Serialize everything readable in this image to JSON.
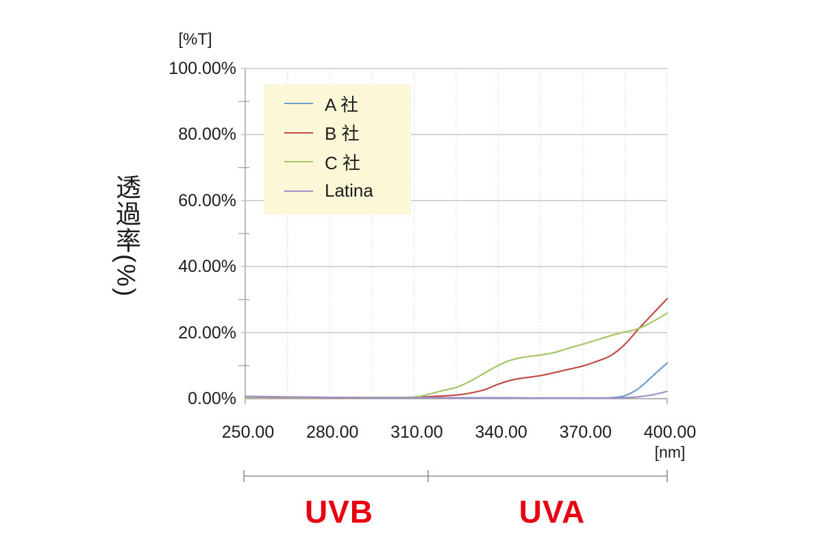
{
  "chart_data": {
    "type": "line",
    "title": "",
    "y_unit_label": "[%T]",
    "x_unit_label": "[nm]",
    "ylabel": "透過率(%)",
    "xlim": [
      250,
      400
    ],
    "ylim": [
      0,
      100
    ],
    "x_ticks": {
      "labels": [
        "250.00",
        "280.00",
        "310.00",
        "340.00",
        "370.00",
        "400.00"
      ],
      "values": [
        250,
        280,
        310,
        340,
        370,
        400
      ]
    },
    "y_ticks": {
      "labels": [
        "100.00%",
        "80.00%",
        "60.00%",
        "40.00%",
        "20.00%",
        "0.00%"
      ],
      "values": [
        100,
        80,
        60,
        40,
        20,
        0
      ]
    },
    "x_minor_grid_step_nm": 15,
    "y_minor_tick_step_pct": 10,
    "grid": true,
    "legend_position": "inside-top-left",
    "colors": {
      "legend_bg": "#fcf7d6",
      "major_grid": "#c9c9c9",
      "minor_grid": "#d2d2d2",
      "axis": "#a8a8a8",
      "bracket": "#8f8f8f",
      "uv_text": "#e60012",
      "text": "#1c1c1c"
    },
    "x": [
      250,
      260,
      270,
      280,
      290,
      300,
      310,
      315,
      320,
      325,
      330,
      335,
      340,
      345,
      350,
      355,
      360,
      365,
      370,
      375,
      380,
      385,
      390,
      395,
      400
    ],
    "series": [
      {
        "name": "A 社",
        "color": "#6d9bcb",
        "values": [
          0.6,
          0.5,
          0.5,
          0.4,
          0.4,
          0.4,
          0.3,
          0.3,
          0.3,
          0.3,
          0.3,
          0.3,
          0.3,
          0.3,
          0.2,
          0.2,
          0.2,
          0.2,
          0.2,
          0.2,
          0.3,
          0.9,
          3.2,
          7.0,
          10.8
        ]
      },
      {
        "name": "B 社",
        "color": "#c14b42",
        "values": [
          0.5,
          0.4,
          0.4,
          0.3,
          0.3,
          0.3,
          0.4,
          0.6,
          0.8,
          1.1,
          1.7,
          2.7,
          4.4,
          5.7,
          6.4,
          7.0,
          7.9,
          8.9,
          9.9,
          11.3,
          13.1,
          16.5,
          21.3,
          25.8,
          30.3
        ]
      },
      {
        "name": "C 社",
        "color": "#a6c468",
        "values": [
          0.5,
          0.5,
          0.4,
          0.4,
          0.4,
          0.4,
          0.5,
          1.3,
          2.4,
          3.4,
          5.3,
          7.7,
          10.1,
          11.8,
          12.7,
          13.2,
          14.0,
          15.3,
          16.5,
          17.8,
          19.1,
          20.2,
          21.3,
          23.4,
          25.9
        ]
      },
      {
        "name": "Latina",
        "color": "#a08fc8",
        "values": [
          0.7,
          0.6,
          0.5,
          0.4,
          0.3,
          0.3,
          0.3,
          0.3,
          0.3,
          0.2,
          0.2,
          0.2,
          0.2,
          0.2,
          0.2,
          0.2,
          0.2,
          0.2,
          0.2,
          0.2,
          0.2,
          0.3,
          0.6,
          1.2,
          2.2
        ]
      }
    ],
    "annotations": {
      "uvb_label": "UVB",
      "uva_label": "UVA",
      "uv_boundary_nm": 315,
      "uv_range_start_nm": 250,
      "uv_range_end_nm": 400
    }
  }
}
